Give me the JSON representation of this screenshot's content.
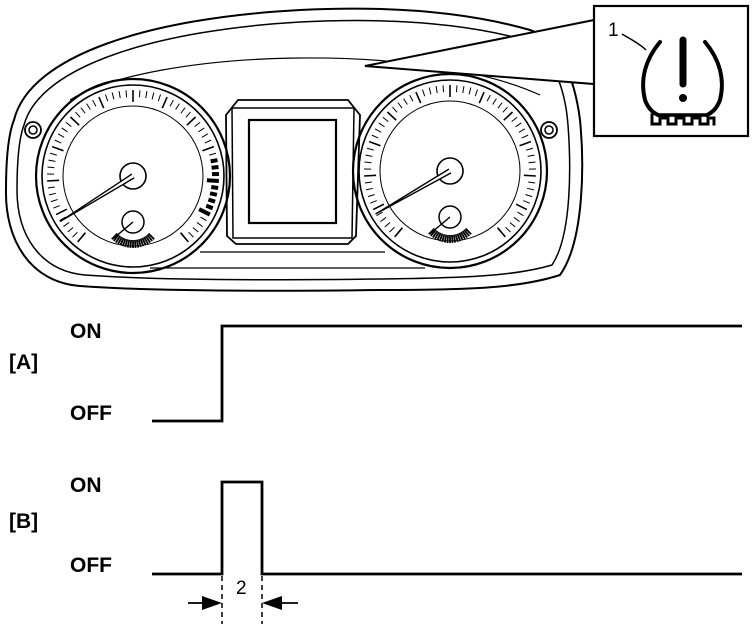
{
  "callout": {
    "icon_number": "1",
    "duration_number": "2"
  },
  "signal_a": {
    "label": "[A]",
    "on_label": "ON",
    "off_label": "OFF"
  },
  "signal_b": {
    "label": "[B]",
    "on_label": "ON",
    "off_label": "OFF"
  },
  "icons": {
    "warning": "tpms-warning-icon",
    "gauge_left": "speedometer-gauge",
    "gauge_right": "tachometer-gauge"
  },
  "colors": {
    "line": "#000000",
    "background": "#ffffff"
  }
}
